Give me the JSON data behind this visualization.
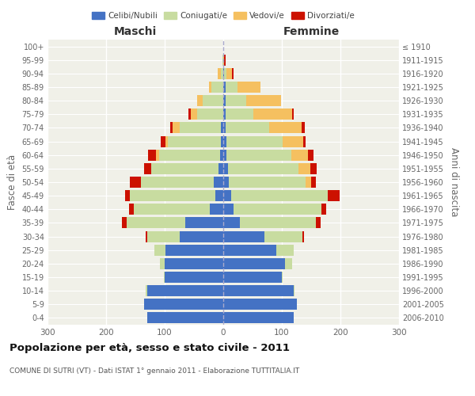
{
  "age_groups": [
    "0-4",
    "5-9",
    "10-14",
    "15-19",
    "20-24",
    "25-29",
    "30-34",
    "35-39",
    "40-44",
    "45-49",
    "50-54",
    "55-59",
    "60-64",
    "65-69",
    "70-74",
    "75-79",
    "80-84",
    "85-89",
    "90-94",
    "95-99",
    "100+"
  ],
  "birth_years": [
    "2006-2010",
    "2001-2005",
    "1996-2000",
    "1991-1995",
    "1986-1990",
    "1981-1985",
    "1976-1980",
    "1971-1975",
    "1966-1970",
    "1961-1965",
    "1956-1960",
    "1951-1955",
    "1946-1950",
    "1941-1945",
    "1936-1940",
    "1931-1935",
    "1926-1930",
    "1921-1925",
    "1916-1920",
    "1911-1915",
    "≤ 1910"
  ],
  "males": {
    "celibi": [
      130,
      135,
      130,
      100,
      100,
      98,
      75,
      65,
      23,
      14,
      16,
      8,
      5,
      4,
      4,
      0,
      0,
      0,
      0,
      0,
      0
    ],
    "coniugati": [
      0,
      0,
      2,
      2,
      8,
      20,
      55,
      100,
      130,
      145,
      125,
      115,
      105,
      90,
      70,
      45,
      35,
      20,
      4,
      1,
      0
    ],
    "vedovi": [
      0,
      0,
      0,
      0,
      0,
      0,
      0,
      0,
      0,
      0,
      0,
      0,
      5,
      5,
      12,
      10,
      10,
      5,
      5,
      0,
      0
    ],
    "divorziati": [
      0,
      0,
      0,
      0,
      0,
      0,
      3,
      8,
      8,
      8,
      18,
      12,
      14,
      8,
      5,
      5,
      0,
      0,
      0,
      0,
      0
    ]
  },
  "females": {
    "nubili": [
      120,
      125,
      120,
      100,
      105,
      90,
      70,
      28,
      18,
      14,
      10,
      8,
      6,
      6,
      4,
      4,
      4,
      4,
      2,
      0,
      0
    ],
    "coniugate": [
      0,
      0,
      2,
      2,
      12,
      30,
      65,
      130,
      150,
      165,
      130,
      120,
      110,
      95,
      75,
      48,
      35,
      20,
      3,
      0,
      0
    ],
    "vedove": [
      0,
      0,
      0,
      0,
      0,
      0,
      0,
      0,
      0,
      0,
      10,
      20,
      28,
      35,
      55,
      65,
      60,
      40,
      10,
      2,
      0
    ],
    "divorziate": [
      0,
      0,
      0,
      0,
      0,
      0,
      3,
      8,
      8,
      20,
      8,
      12,
      10,
      5,
      5,
      3,
      0,
      0,
      2,
      2,
      0
    ]
  },
  "colors": {
    "celibi": "#4472C4",
    "coniugati": "#C8DCA0",
    "vedovi": "#F5C060",
    "divorziati": "#CC1100"
  },
  "xlim": 300,
  "title": "Popolazione per età, sesso e stato civile - 2011",
  "subtitle": "COMUNE DI SUTRI (VT) - Dati ISTAT 1° gennaio 2011 - Elaborazione TUTTITALIA.IT",
  "ylabel_left": "Fasce di età",
  "ylabel_right": "Anni di nascita",
  "xlabel_left": "Maschi",
  "xlabel_right": "Femmine",
  "bg_color": "#FFFFFF",
  "plot_bg_color": "#F0F0E8",
  "grid_color": "#FFFFFF",
  "legend_labels": [
    "Celibi/Nubili",
    "Coniugati/e",
    "Vedovi/e",
    "Divorziati/e"
  ]
}
